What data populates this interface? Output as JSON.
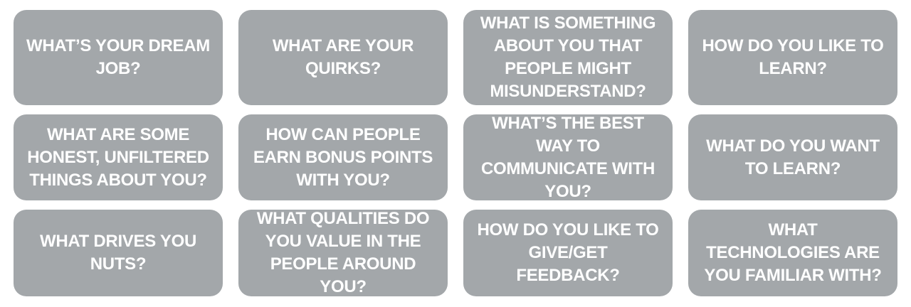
{
  "cards": [
    "WHAT’S YOUR DREAM JOB?",
    "WHAT ARE YOUR QUIRKS?",
    "WHAT IS SOMETHING ABOUT YOU THAT PEOPLE MIGHT MISUNDERSTAND?",
    "HOW DO YOU LIKE TO LEARN?",
    "WHAT ARE SOME HONEST, UNFILTERED THINGS ABOUT YOU?",
    "HOW CAN PEOPLE EARN BONUS POINTS WITH YOU?",
    "WHAT’S THE BEST WAY TO COMMUNICATE WITH YOU?",
    "WHAT DO YOU WANT TO LEARN?",
    "WHAT DRIVES YOU NUTS?",
    "WHAT QUALITIES DO YOU VALUE IN THE PEOPLE AROUND YOU?",
    "HOW DO YOU LIKE TO GIVE/GET FEEDBACK?",
    "WHAT TECHNOLOGIES ARE YOU FAMILIAR WITH?"
  ],
  "colors": {
    "card_background": "#a3a7aa",
    "card_text": "#ffffff",
    "page_background": "#ffffff"
  }
}
